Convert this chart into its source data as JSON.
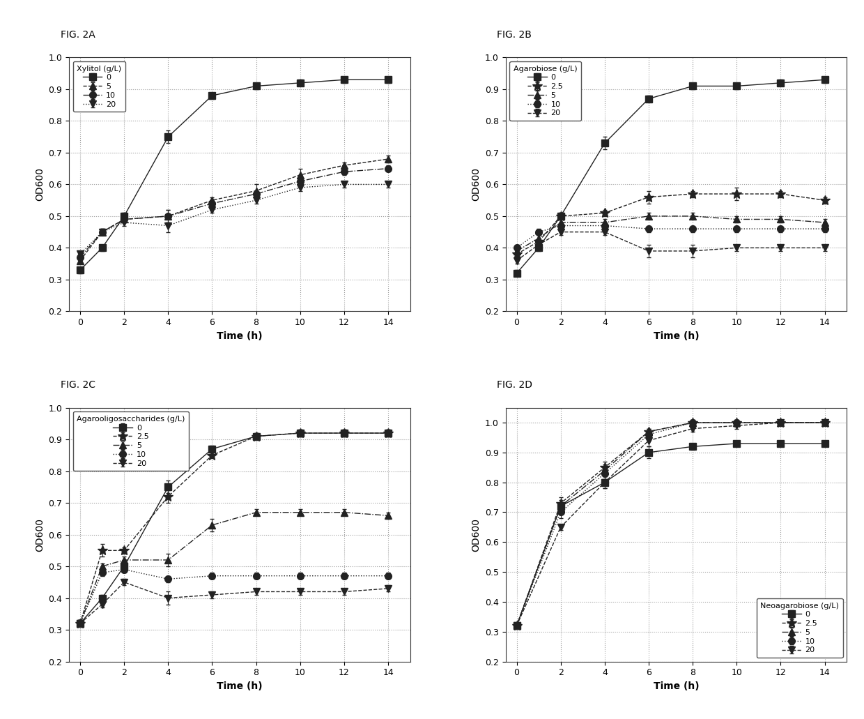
{
  "panels": [
    {
      "title": "FIG. 2A",
      "legend_title": "Xylitol (g/L)",
      "legend_labels": [
        "0",
        "5",
        "10",
        "20"
      ],
      "markers": [
        "s",
        "^",
        "o",
        "v"
      ],
      "linestyles": [
        "-",
        "--",
        "-.",
        ":"
      ],
      "time": [
        0,
        1,
        2,
        4,
        6,
        8,
        10,
        12,
        14
      ],
      "series": [
        [
          0.33,
          0.4,
          0.5,
          0.75,
          0.88,
          0.91,
          0.92,
          0.93,
          0.93
        ],
        [
          0.36,
          0.45,
          0.49,
          0.5,
          0.55,
          0.58,
          0.63,
          0.66,
          0.68
        ],
        [
          0.37,
          0.45,
          0.49,
          0.5,
          0.54,
          0.57,
          0.61,
          0.64,
          0.65
        ],
        [
          0.38,
          0.45,
          0.48,
          0.47,
          0.52,
          0.55,
          0.59,
          0.6,
          0.6
        ]
      ],
      "errors": [
        [
          0.01,
          0.01,
          0.01,
          0.02,
          0.01,
          0.01,
          0.01,
          0.01,
          0.01
        ],
        [
          0.01,
          0.01,
          0.01,
          0.02,
          0.01,
          0.02,
          0.02,
          0.01,
          0.01
        ],
        [
          0.01,
          0.01,
          0.01,
          0.02,
          0.01,
          0.01,
          0.02,
          0.01,
          0.01
        ],
        [
          0.01,
          0.01,
          0.01,
          0.02,
          0.01,
          0.01,
          0.01,
          0.01,
          0.01
        ]
      ],
      "ylim": [
        0.2,
        1.0
      ],
      "yticks": [
        0.2,
        0.3,
        0.4,
        0.5,
        0.6,
        0.7,
        0.8,
        0.9,
        1.0
      ],
      "legend_loc": "upper left"
    },
    {
      "title": "FIG. 2B",
      "legend_title": "Agarobiose (g/L)",
      "legend_labels": [
        "0",
        "2.5",
        "5",
        "10",
        "20"
      ],
      "markers": [
        "s",
        "*",
        "^",
        "o",
        "v"
      ],
      "linestyles": [
        "-",
        "--",
        "-.",
        ":",
        "--"
      ],
      "time": [
        0,
        1,
        2,
        4,
        6,
        8,
        10,
        12,
        14
      ],
      "series": [
        [
          0.32,
          0.4,
          0.5,
          0.73,
          0.87,
          0.91,
          0.91,
          0.92,
          0.93
        ],
        [
          0.38,
          0.42,
          0.5,
          0.51,
          0.56,
          0.57,
          0.57,
          0.57,
          0.55
        ],
        [
          0.39,
          0.43,
          0.48,
          0.48,
          0.5,
          0.5,
          0.49,
          0.49,
          0.48
        ],
        [
          0.4,
          0.45,
          0.47,
          0.47,
          0.46,
          0.46,
          0.46,
          0.46,
          0.46
        ],
        [
          0.36,
          0.41,
          0.45,
          0.45,
          0.39,
          0.39,
          0.4,
          0.4,
          0.4
        ]
      ],
      "errors": [
        [
          0.01,
          0.01,
          0.01,
          0.02,
          0.01,
          0.01,
          0.01,
          0.01,
          0.01
        ],
        [
          0.01,
          0.01,
          0.01,
          0.01,
          0.02,
          0.01,
          0.02,
          0.01,
          0.01
        ],
        [
          0.01,
          0.01,
          0.01,
          0.01,
          0.01,
          0.01,
          0.01,
          0.01,
          0.01
        ],
        [
          0.01,
          0.01,
          0.01,
          0.01,
          0.01,
          0.01,
          0.01,
          0.01,
          0.01
        ],
        [
          0.01,
          0.01,
          0.01,
          0.01,
          0.02,
          0.02,
          0.01,
          0.01,
          0.01
        ]
      ],
      "ylim": [
        0.2,
        1.0
      ],
      "yticks": [
        0.2,
        0.3,
        0.4,
        0.5,
        0.6,
        0.7,
        0.8,
        0.9,
        1.0
      ],
      "legend_loc": "upper left"
    },
    {
      "title": "FIG. 2C",
      "legend_title": "Agarooligosaccharides (g/L)",
      "legend_labels": [
        "0",
        "2.5",
        "5",
        "10",
        "20"
      ],
      "markers": [
        "s",
        "*",
        "^",
        "o",
        "v"
      ],
      "linestyles": [
        "-",
        "--",
        "-.",
        ":",
        "--"
      ],
      "time": [
        0,
        1,
        2,
        4,
        6,
        8,
        10,
        12,
        14
      ],
      "series": [
        [
          0.32,
          0.4,
          0.5,
          0.75,
          0.87,
          0.91,
          0.92,
          0.92,
          0.92
        ],
        [
          0.32,
          0.55,
          0.55,
          0.72,
          0.85,
          0.91,
          0.92,
          0.92,
          0.92
        ],
        [
          0.32,
          0.5,
          0.52,
          0.52,
          0.63,
          0.67,
          0.67,
          0.67,
          0.66
        ],
        [
          0.32,
          0.48,
          0.49,
          0.46,
          0.47,
          0.47,
          0.47,
          0.47,
          0.47
        ],
        [
          0.32,
          0.38,
          0.45,
          0.4,
          0.41,
          0.42,
          0.42,
          0.42,
          0.43
        ]
      ],
      "errors": [
        [
          0.01,
          0.01,
          0.01,
          0.02,
          0.01,
          0.01,
          0.01,
          0.01,
          0.01
        ],
        [
          0.01,
          0.02,
          0.01,
          0.02,
          0.01,
          0.01,
          0.01,
          0.01,
          0.01
        ],
        [
          0.01,
          0.01,
          0.01,
          0.02,
          0.02,
          0.01,
          0.01,
          0.01,
          0.01
        ],
        [
          0.01,
          0.01,
          0.01,
          0.01,
          0.01,
          0.01,
          0.01,
          0.01,
          0.01
        ],
        [
          0.01,
          0.01,
          0.01,
          0.02,
          0.01,
          0.01,
          0.01,
          0.01,
          0.01
        ]
      ],
      "ylim": [
        0.2,
        1.0
      ],
      "yticks": [
        0.2,
        0.3,
        0.4,
        0.5,
        0.6,
        0.7,
        0.8,
        0.9,
        1.0
      ],
      "legend_loc": "upper left"
    },
    {
      "title": "FIG. 2D",
      "legend_title": "Neoagarobiose (g/L)",
      "legend_labels": [
        "0",
        "2.5",
        "5",
        "10",
        "20"
      ],
      "markers": [
        "s",
        "*",
        "^",
        "o",
        "v"
      ],
      "linestyles": [
        "-",
        "--",
        "-.",
        ":",
        "--"
      ],
      "time": [
        0,
        2,
        4,
        6,
        8,
        10,
        12,
        14
      ],
      "series": [
        [
          0.32,
          0.72,
          0.8,
          0.9,
          0.92,
          0.93,
          0.93,
          0.93
        ],
        [
          0.32,
          0.73,
          0.85,
          0.97,
          1.0,
          1.0,
          1.0,
          1.0
        ],
        [
          0.32,
          0.72,
          0.84,
          0.97,
          1.0,
          1.0,
          1.0,
          1.0
        ],
        [
          0.32,
          0.7,
          0.83,
          0.96,
          1.0,
          1.0,
          1.0,
          1.0
        ],
        [
          0.32,
          0.65,
          0.8,
          0.94,
          0.98,
          0.99,
          1.0,
          1.0
        ]
      ],
      "errors": [
        [
          0.01,
          0.02,
          0.02,
          0.02,
          0.01,
          0.01,
          0.01,
          0.01
        ],
        [
          0.01,
          0.02,
          0.02,
          0.01,
          0.01,
          0.01,
          0.01,
          0.01
        ],
        [
          0.01,
          0.01,
          0.02,
          0.01,
          0.01,
          0.01,
          0.01,
          0.01
        ],
        [
          0.01,
          0.02,
          0.02,
          0.02,
          0.01,
          0.01,
          0.01,
          0.01
        ],
        [
          0.01,
          0.01,
          0.02,
          0.02,
          0.01,
          0.01,
          0.01,
          0.01
        ]
      ],
      "ylim": [
        0.2,
        1.05
      ],
      "yticks": [
        0.2,
        0.3,
        0.4,
        0.5,
        0.6,
        0.7,
        0.8,
        0.9,
        1.0
      ],
      "legend_loc": "lower right"
    }
  ],
  "line_color": "#222222",
  "marker_facecolor": "#222222",
  "fig_bg_color": "#ffffff",
  "plot_bg_color": "#ffffff",
  "fig_label_fontsize": 10,
  "axis_label_fontsize": 10,
  "tick_fontsize": 9,
  "legend_fontsize": 8,
  "xlabel": "Time (h)",
  "ylabel": "OD600"
}
